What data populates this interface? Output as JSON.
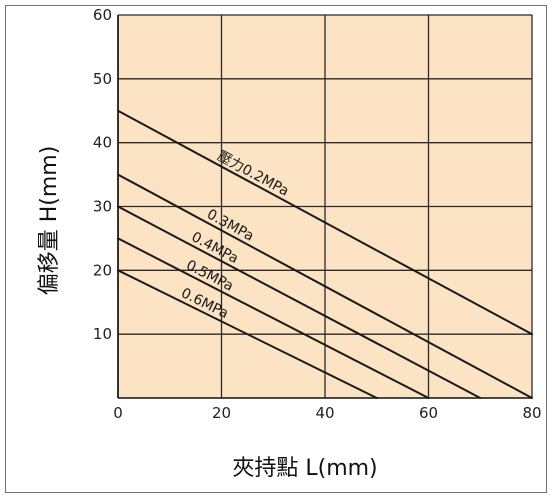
{
  "chart_data": {
    "type": "line",
    "title": "",
    "xlabel": "夾持點 L(mm)",
    "ylabel": "偏移量 H(mm)",
    "xlim": [
      0,
      80
    ],
    "ylim": [
      0,
      60
    ],
    "xticks": [
      "0",
      "20",
      "40",
      "60",
      "80"
    ],
    "yticks": [
      "10",
      "20",
      "30",
      "40",
      "50",
      "60"
    ],
    "grid": true,
    "background_color": "#fbe3c4",
    "line_color": "#1a1a1a",
    "series": [
      {
        "name": "壓力0.2MPa",
        "x": [
          0,
          80
        ],
        "y": [
          45,
          10
        ]
      },
      {
        "name": "0.3MPa",
        "x": [
          0,
          80
        ],
        "y": [
          35,
          0
        ]
      },
      {
        "name": "0.4MPa",
        "x": [
          0,
          70
        ],
        "y": [
          30,
          0
        ]
      },
      {
        "name": "0.5MPa",
        "x": [
          0,
          60
        ],
        "y": [
          25,
          0
        ]
      },
      {
        "name": "0.6MPa",
        "x": [
          0,
          50
        ],
        "y": [
          20,
          0
        ]
      }
    ]
  }
}
